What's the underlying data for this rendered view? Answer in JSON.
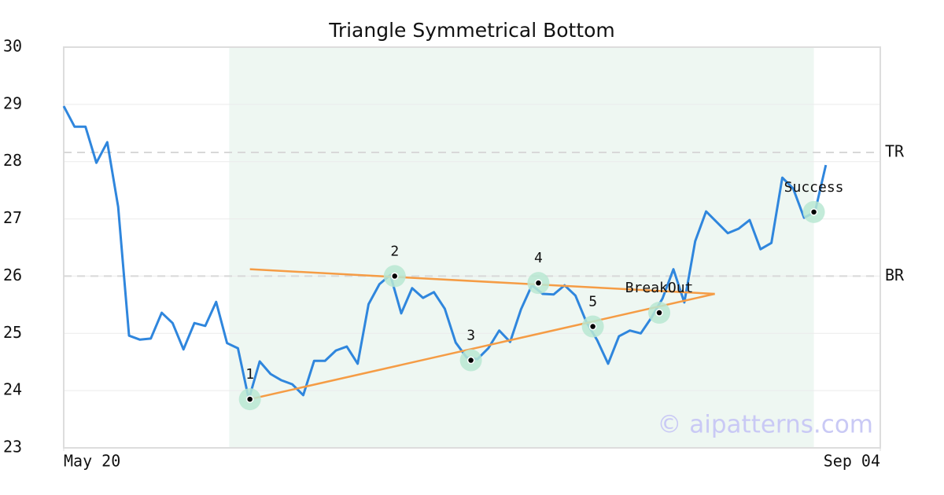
{
  "chart_data": {
    "type": "line",
    "title": "Triangle Symmetrical Bottom",
    "x": [
      0,
      1,
      2,
      3,
      4,
      5,
      6,
      7,
      8,
      9,
      10,
      11,
      12,
      13,
      14,
      15,
      16,
      17,
      18,
      19,
      20,
      21,
      22,
      23,
      24,
      25,
      26,
      27,
      28,
      29,
      30,
      31,
      32,
      33,
      34,
      35,
      36,
      37,
      38,
      39,
      40,
      41,
      42,
      43,
      44,
      45,
      46,
      47,
      48,
      49,
      50,
      51,
      52,
      53,
      54,
      55,
      56,
      57,
      58,
      59,
      60,
      61,
      62,
      63,
      64,
      65,
      66,
      67,
      68,
      69,
      70
    ],
    "values": [
      28.97,
      28.61,
      28.61,
      27.98,
      28.34,
      27.21,
      24.96,
      24.89,
      24.91,
      25.36,
      25.18,
      24.72,
      25.18,
      25.13,
      25.55,
      24.83,
      24.74,
      23.85,
      24.51,
      24.29,
      24.18,
      24.11,
      23.92,
      24.52,
      24.52,
      24.7,
      24.77,
      24.47,
      25.51,
      25.86,
      26.02,
      25.35,
      25.79,
      25.62,
      25.72,
      25.43,
      24.84,
      24.58,
      24.55,
      24.74,
      25.05,
      24.85,
      25.42,
      25.84,
      25.69,
      25.68,
      25.84,
      25.66,
      25.2,
      24.88,
      24.47,
      24.95,
      25.05,
      25.0,
      25.28,
      25.61,
      26.12,
      25.54,
      26.61,
      27.13,
      26.94,
      26.75,
      26.83,
      26.98,
      26.47,
      26.58,
      27.72,
      27.53,
      27.02,
      27.12,
      27.94
    ],
    "color": "#2f86dd",
    "xlim": [
      0,
      75
    ],
    "xticks": [
      {
        "value": 0,
        "label": "May 20"
      },
      {
        "value": 75,
        "label": "Sep 04"
      }
    ],
    "ylim": [
      23,
      30
    ],
    "yticks": [
      23,
      24,
      25,
      26,
      27,
      28,
      29,
      30
    ],
    "grid": true,
    "highlight": [
      15.2,
      68.9
    ],
    "trend_lines": [
      {
        "x": [
          17.1,
          59.8
        ],
        "y": [
          26.12,
          25.69
        ],
        "color": "#f59c45"
      },
      {
        "x": [
          17.1,
          59.8
        ],
        "y": [
          23.85,
          25.69
        ],
        "color": "#f59c45"
      }
    ],
    "levels": [
      {
        "label": "TR",
        "value": 28.16
      },
      {
        "label": "BR",
        "value": 26.0
      }
    ],
    "pivots": [
      {
        "label": "1",
        "x": 17.1,
        "y": 23.85
      },
      {
        "label": "2",
        "x": 30.4,
        "y": 26.0
      },
      {
        "label": "3",
        "x": 37.4,
        "y": 24.53
      },
      {
        "label": "4",
        "x": 43.6,
        "y": 25.88
      },
      {
        "label": "5",
        "x": 48.6,
        "y": 25.12
      },
      {
        "label": "BreakOut",
        "x": 54.7,
        "y": 25.36
      },
      {
        "label": "Success",
        "x": 68.9,
        "y": 27.12
      }
    ],
    "watermark": "© aipatterns.com"
  }
}
